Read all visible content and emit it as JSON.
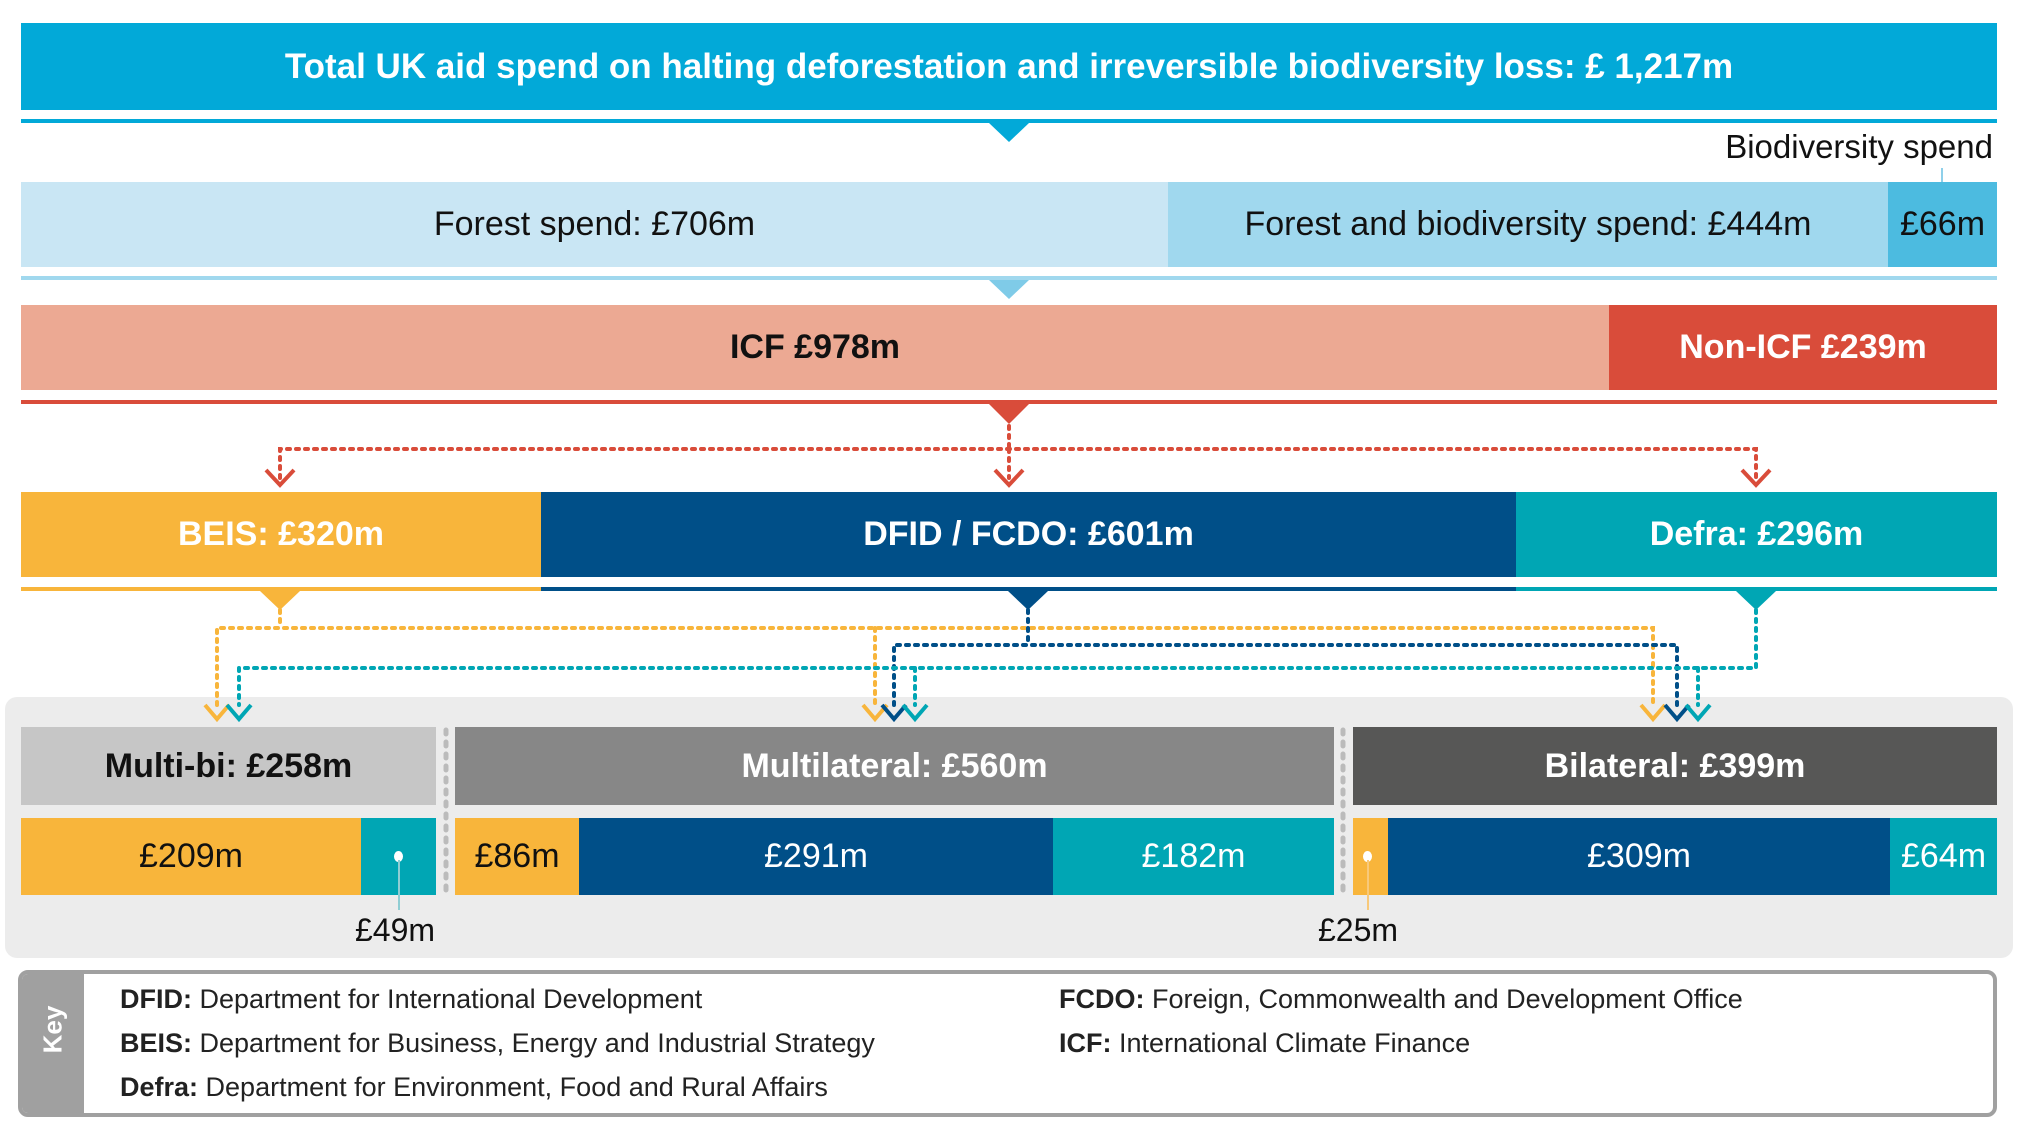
{
  "title": "Total UK aid spend on halting deforestation and irreversible biodiversity loss: £ 1,217m",
  "spend_type": {
    "biodiversity_label": "Biodiversity spend",
    "forest": "Forest spend: £706m",
    "forest_bio": "Forest and biodiversity spend: £444m",
    "biodiversity": "£66m"
  },
  "icf": {
    "icf": "ICF £978m",
    "non_icf": "Non-ICF £239m"
  },
  "departments": {
    "beis": "BEIS: £320m",
    "dfid": "DFID / FCDO: £601m",
    "defra": "Defra: £296m"
  },
  "channels": {
    "multibi": {
      "label": "Multi-bi: £258m",
      "beis": "£209m",
      "defra": "£49m"
    },
    "multilateral": {
      "label": "Multilateral: £560m",
      "beis": "£86m",
      "dfid": "£291m",
      "defra": "£182m"
    },
    "bilateral": {
      "label": "Bilateral: £399m",
      "beis": "£25m",
      "dfid": "£309m",
      "defra": "£64m"
    }
  },
  "key": {
    "title": "Key",
    "items": [
      {
        "term": "DFID:",
        "desc": " Department for International Development"
      },
      {
        "term": "BEIS:",
        "desc": " Department for Business, Energy and Industrial Strategy"
      },
      {
        "term": "Defra:",
        "desc": " Department for Environment, Food and Rural Affairs"
      },
      {
        "term": "FCDO:",
        "desc": " Foreign, Commonwealth and Development Office"
      },
      {
        "term": "ICF:",
        "desc": " International Climate Finance"
      }
    ]
  },
  "colors": {
    "title": "#02a9d8",
    "forest": "#c9e6f4",
    "forest_bio": "#a0d8ee",
    "bio": "#4cbbe0",
    "icf": "#eca993",
    "non_icf": "#d94c3a",
    "beis": "#f8b53b",
    "dfid": "#004f88",
    "defra": "#00a6b4",
    "multibi": "#c6c6c6",
    "multilateral": "#878787",
    "bilateral": "#575756"
  }
}
